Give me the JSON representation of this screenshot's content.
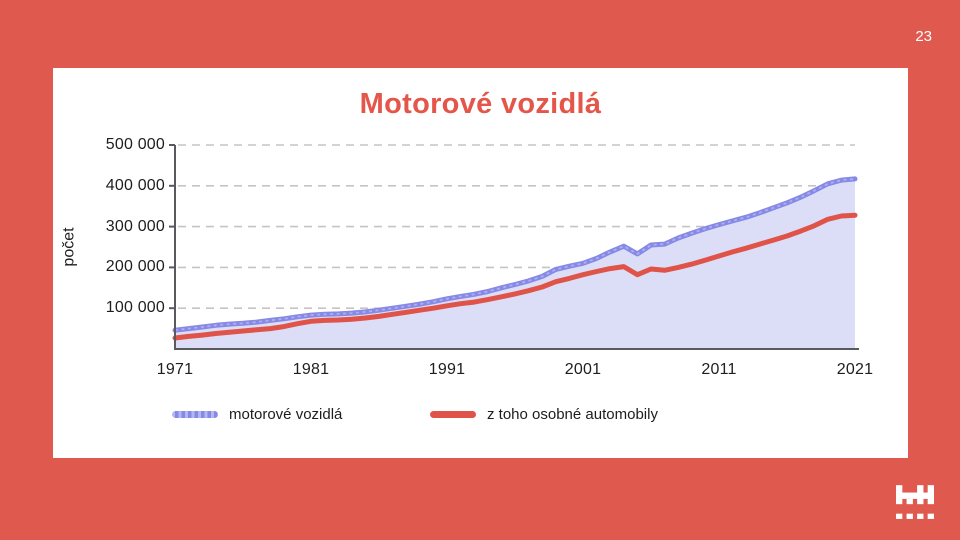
{
  "slide": {
    "page_number": "23"
  },
  "colors": {
    "background": "#e0594e",
    "card": "#ffffff",
    "title": "#e4564a",
    "axis": "#595a5e",
    "grid": "#c7c3c4",
    "tick_text": "#1e1e1e",
    "logo": "#ffffff"
  },
  "chart_data": {
    "type": "area",
    "title": "Motorové vozidlá",
    "xlabel": "",
    "ylabel": "počet",
    "xlim": [
      1971,
      2021
    ],
    "ylim": [
      0,
      500000
    ],
    "grid": "horizontal dashed",
    "legend_position": "bottom",
    "x_ticks": [
      1971,
      1981,
      1991,
      2001,
      2011,
      2021
    ],
    "y_ticks": [
      {
        "value": 100000,
        "label": "100 000"
      },
      {
        "value": 200000,
        "label": "200 000"
      },
      {
        "value": 300000,
        "label": "300 000"
      },
      {
        "value": 400000,
        "label": "400 000"
      },
      {
        "value": 500000,
        "label": "500 000"
      }
    ],
    "x": [
      1971,
      1972,
      1973,
      1974,
      1975,
      1976,
      1977,
      1978,
      1979,
      1980,
      1981,
      1982,
      1983,
      1984,
      1985,
      1986,
      1987,
      1988,
      1989,
      1990,
      1991,
      1992,
      1993,
      1994,
      1995,
      1996,
      1997,
      1998,
      1999,
      2000,
      2001,
      2002,
      2003,
      2004,
      2005,
      2006,
      2007,
      2008,
      2009,
      2010,
      2011,
      2012,
      2013,
      2014,
      2015,
      2016,
      2017,
      2018,
      2019,
      2020,
      2021
    ],
    "series": [
      {
        "name": "motorové vozidlá",
        "color": "#8689e6",
        "area_fill": "#dcdef7",
        "line_width": 5,
        "values": [
          46000,
          50000,
          54000,
          58000,
          61000,
          63000,
          66000,
          70000,
          74000,
          79000,
          83000,
          85000,
          86000,
          88000,
          91000,
          95000,
          100000,
          105000,
          110000,
          116000,
          123000,
          129000,
          134000,
          141000,
          150000,
          158000,
          167000,
          178000,
          195000,
          203000,
          210000,
          222000,
          238000,
          252000,
          233000,
          255000,
          257000,
          272000,
          284000,
          295000,
          305000,
          314000,
          323000,
          334000,
          346000,
          358000,
          372000,
          388000,
          405000,
          414000,
          417000
        ]
      },
      {
        "name": "z toho osobné automobily",
        "color": "#df5348",
        "area_fill": null,
        "line_width": 5,
        "values": [
          27000,
          31000,
          34000,
          38000,
          41000,
          44000,
          47000,
          50000,
          55000,
          62000,
          68000,
          70000,
          71000,
          73000,
          76000,
          80000,
          85000,
          90000,
          95000,
          100000,
          106000,
          111000,
          115000,
          121000,
          128000,
          135000,
          143000,
          152000,
          165000,
          173000,
          182000,
          190000,
          197000,
          202000,
          182000,
          196000,
          193000,
          200000,
          208000,
          218000,
          228000,
          238000,
          247000,
          257000,
          267000,
          277000,
          289000,
          302000,
          318000,
          326000,
          328000
        ]
      }
    ]
  }
}
